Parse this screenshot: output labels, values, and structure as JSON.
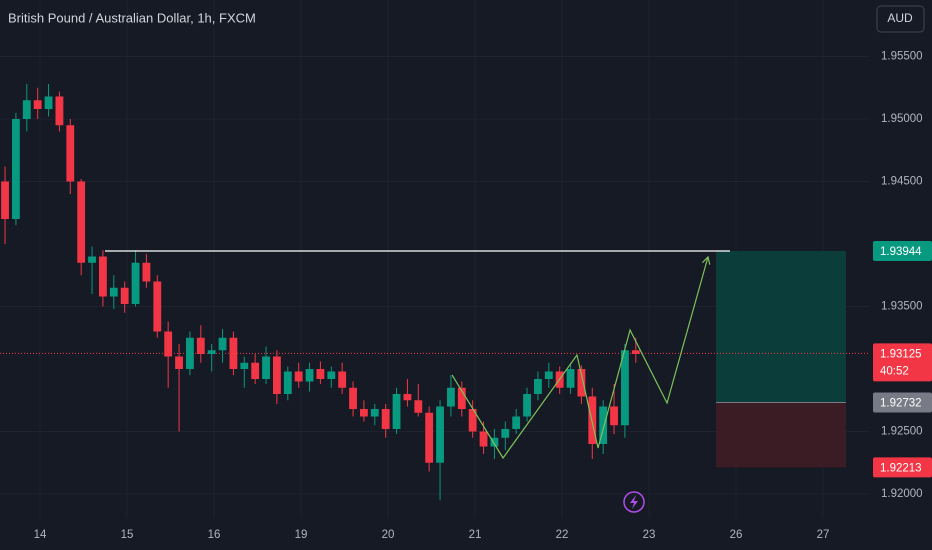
{
  "chart_data": {
    "type": "candlestick",
    "title": "British Pound / Australian Dollar, 1h, FXCM",
    "currency": "AUD",
    "up_color": "#089981",
    "down_color": "#f23645",
    "grid": true,
    "xlim": [
      -0.46,
      9.54
    ],
    "ylim": [
      1.91808,
      1.95952
    ],
    "xticks": [
      {
        "value": 0,
        "label": "14"
      },
      {
        "value": 1,
        "label": "15"
      },
      {
        "value": 2,
        "label": "16"
      },
      {
        "value": 3,
        "label": "19"
      },
      {
        "value": 4,
        "label": "20"
      },
      {
        "value": 5,
        "label": "21"
      },
      {
        "value": 6,
        "label": "22"
      },
      {
        "value": 7,
        "label": "23"
      },
      {
        "value": 8,
        "label": "26"
      },
      {
        "value": 9,
        "label": "27"
      }
    ],
    "yticks": [
      {
        "value": 1.955,
        "label": "1.95500"
      },
      {
        "value": 1.95,
        "label": "1.95000"
      },
      {
        "value": 1.945,
        "label": "1.94500"
      },
      {
        "value": 1.935,
        "label": "1.93500"
      },
      {
        "value": 1.925,
        "label": "1.92500"
      },
      {
        "value": 1.92,
        "label": "1.92000"
      }
    ],
    "x": [
      -0.402,
      -0.277,
      -0.152,
      -0.027,
      0.098,
      0.223,
      0.348,
      0.473,
      0.598,
      0.723,
      0.848,
      0.973,
      1.098,
      1.223,
      1.348,
      1.473,
      1.598,
      1.723,
      1.848,
      1.973,
      2.098,
      2.223,
      2.348,
      2.473,
      2.598,
      2.723,
      2.848,
      2.973,
      3.098,
      3.223,
      3.348,
      3.473,
      3.598,
      3.723,
      3.848,
      3.973,
      4.098,
      4.223,
      4.348,
      4.473,
      4.598,
      4.723,
      4.848,
      4.973,
      5.098,
      5.223,
      5.348,
      5.473,
      5.598,
      5.723,
      5.848,
      5.973,
      6.098,
      6.223,
      6.348,
      6.473,
      6.598,
      6.723,
      6.848
    ],
    "candles": [
      [
        1.945,
        1.9462,
        1.94,
        1.942
      ],
      [
        1.942,
        1.9505,
        1.9415,
        1.95
      ],
      [
        1.95,
        1.9528,
        1.949,
        1.9515
      ],
      [
        1.9515,
        1.9525,
        1.95,
        1.9508
      ],
      [
        1.9508,
        1.9528,
        1.9502,
        1.9518
      ],
      [
        1.9518,
        1.9522,
        1.949,
        1.9495
      ],
      [
        1.9495,
        1.95,
        1.944,
        1.945
      ],
      [
        1.945,
        1.9452,
        1.9375,
        1.9385
      ],
      [
        1.9385,
        1.9398,
        1.936,
        1.939
      ],
      [
        1.939,
        1.9395,
        1.935,
        1.9358
      ],
      [
        1.9358,
        1.9375,
        1.9348,
        1.9365
      ],
      [
        1.9365,
        1.937,
        1.9345,
        1.9352
      ],
      [
        1.9352,
        1.9395,
        1.935,
        1.9385
      ],
      [
        1.9385,
        1.9392,
        1.9365,
        1.937
      ],
      [
        1.937,
        1.9375,
        1.9325,
        1.933
      ],
      [
        1.933,
        1.9338,
        1.9285,
        1.931
      ],
      [
        1.931,
        1.932,
        1.925,
        1.93
      ],
      [
        1.93,
        1.933,
        1.9295,
        1.9325
      ],
      [
        1.9325,
        1.9335,
        1.9305,
        1.9312
      ],
      [
        1.9312,
        1.932,
        1.9298,
        1.9315
      ],
      [
        1.9315,
        1.9332,
        1.9305,
        1.9325
      ],
      [
        1.9325,
        1.933,
        1.9295,
        1.93
      ],
      [
        1.93,
        1.931,
        1.9285,
        1.9305
      ],
      [
        1.9305,
        1.9312,
        1.9288,
        1.9292
      ],
      [
        1.9292,
        1.9318,
        1.9288,
        1.931
      ],
      [
        1.931,
        1.9315,
        1.9272,
        1.928
      ],
      [
        1.928,
        1.9302,
        1.9275,
        1.9298
      ],
      [
        1.9298,
        1.9305,
        1.9285,
        1.929
      ],
      [
        1.929,
        1.9305,
        1.9282,
        1.93
      ],
      [
        1.93,
        1.9306,
        1.9288,
        1.9292
      ],
      [
        1.9292,
        1.9302,
        1.9285,
        1.9298
      ],
      [
        1.9298,
        1.9305,
        1.928,
        1.9285
      ],
      [
        1.9285,
        1.929,
        1.9262,
        1.9268
      ],
      [
        1.9268,
        1.9275,
        1.9258,
        1.9262
      ],
      [
        1.9262,
        1.9272,
        1.9255,
        1.9268
      ],
      [
        1.9268,
        1.9272,
        1.9245,
        1.9252
      ],
      [
        1.9252,
        1.9285,
        1.9248,
        1.928
      ],
      [
        1.928,
        1.9292,
        1.927,
        1.9275
      ],
      [
        1.9275,
        1.9288,
        1.9262,
        1.9265
      ],
      [
        1.9265,
        1.927,
        1.9218,
        1.9225
      ],
      [
        1.9225,
        1.9275,
        1.9195,
        1.927
      ],
      [
        1.927,
        1.9295,
        1.9262,
        1.9285
      ],
      [
        1.9285,
        1.929,
        1.9262,
        1.9268
      ],
      [
        1.9268,
        1.9275,
        1.9245,
        1.925
      ],
      [
        1.925,
        1.9258,
        1.9232,
        1.9238
      ],
      [
        1.9238,
        1.9252,
        1.9228,
        1.9245
      ],
      [
        1.9245,
        1.9258,
        1.9235,
        1.9252
      ],
      [
        1.9252,
        1.9268,
        1.9248,
        1.9262
      ],
      [
        1.9262,
        1.9285,
        1.9258,
        1.928
      ],
      [
        1.928,
        1.9298,
        1.9275,
        1.9292
      ],
      [
        1.9292,
        1.9305,
        1.9285,
        1.9298
      ],
      [
        1.9298,
        1.9302,
        1.928,
        1.9285
      ],
      [
        1.9285,
        1.9305,
        1.928,
        1.93
      ],
      [
        1.93,
        1.9303,
        1.9272,
        1.9278
      ],
      [
        1.9278,
        1.9285,
        1.9228,
        1.924
      ],
      [
        1.924,
        1.9275,
        1.9232,
        1.927
      ],
      [
        1.927,
        1.9288,
        1.9248,
        1.9255
      ],
      [
        1.9255,
        1.932,
        1.9245,
        1.9315
      ],
      [
        1.9315,
        1.9325,
        1.9305,
        1.9312
      ]
    ],
    "last_price": 1.93125,
    "countdown": "40:52",
    "horizontal_line": {
      "price": 1.93944,
      "x": [
        0.747,
        7.931
      ],
      "color": "#ffffff"
    },
    "pattern": {
      "color": "#7cc35a",
      "x": [
        4.736,
        5.322,
        6.172,
        6.414,
        6.782,
        7.207,
        7.678
      ],
      "y": [
        1.92952,
        1.92288,
        1.93112,
        1.92368,
        1.93312,
        1.92728,
        1.93896
      ]
    },
    "position": {
      "x": [
        7.77,
        9.264
      ],
      "target": 1.93944,
      "entry": 1.92732,
      "stop": 1.92213,
      "profit_color": "#0b3d3a",
      "loss_color": "#3b1c24"
    }
  }
}
